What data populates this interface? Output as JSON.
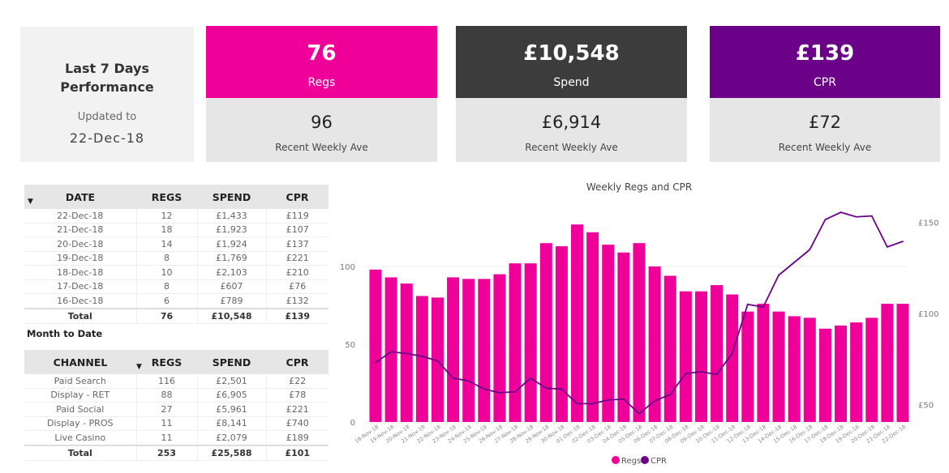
{
  "header": {
    "title": "Last 7 Days Performance",
    "updated_label": "Updated to",
    "updated_date": "22-Dec-18"
  },
  "kpis": [
    {
      "value": "76",
      "label": "Regs",
      "recent_value": "96",
      "recent_label": "Recent Weekly Ave",
      "color": "#ee0099"
    },
    {
      "value": "£10,548",
      "label": "Spend",
      "recent_value": "£6,914",
      "recent_label": "Recent Weekly Ave",
      "color": "#3c3c3c"
    },
    {
      "value": "£139",
      "label": "CPR",
      "recent_value": "£72",
      "recent_label": "Recent Weekly Ave",
      "color": "#6b0089"
    }
  ],
  "daily_table": {
    "columns": [
      "DATE",
      "REGS",
      "SPEND",
      "CPR"
    ],
    "rows": [
      [
        "22-Dec-18",
        "12",
        "£1,433",
        "£119"
      ],
      [
        "21-Dec-18",
        "18",
        "£1,923",
        "£107"
      ],
      [
        "20-Dec-18",
        "14",
        "£1,924",
        "£137"
      ],
      [
        "19-Dec-18",
        "8",
        "£1,769",
        "£221"
      ],
      [
        "18-Dec-18",
        "10",
        "£2,103",
        "£210"
      ],
      [
        "17-Dec-18",
        "8",
        "£607",
        "£76"
      ],
      [
        "16-Dec-18",
        "6",
        "£789",
        "£132"
      ]
    ],
    "total": [
      "Total",
      "76",
      "£10,548",
      "£139"
    ]
  },
  "month_to_date": {
    "title": "Month to Date",
    "columns": [
      "CHANNEL",
      "REGS",
      "SPEND",
      "CPR"
    ],
    "rows": [
      [
        "Paid Search",
        "116",
        "£2,501",
        "£22"
      ],
      [
        "Display - RET",
        "88",
        "£6,905",
        "£78"
      ],
      [
        "Paid Social",
        "27",
        "£5,961",
        "£221"
      ],
      [
        "Display - PROS",
        "11",
        "£8,141",
        "£740"
      ],
      [
        "Live Casino",
        "11",
        "£2,079",
        "£189"
      ]
    ],
    "total": [
      "Total",
      "253",
      "£25,588",
      "£101"
    ]
  },
  "chart_data": {
    "type": "bar+line",
    "title": "Weekly Regs and CPR",
    "categories": [
      "18-Nov-18",
      "19-Nov-18",
      "20-Nov-18",
      "21-Nov-18",
      "22-Nov-18",
      "23-Nov-18",
      "24-Nov-18",
      "25-Nov-18",
      "26-Nov-18",
      "27-Nov-18",
      "28-Nov-18",
      "29-Nov-18",
      "30-Nov-18",
      "01-Dec-18",
      "02-Dec-18",
      "03-Dec-18",
      "04-Dec-18",
      "05-Dec-18",
      "06-Dec-18",
      "07-Dec-18",
      "08-Dec-18",
      "09-Dec-18",
      "10-Dec-18",
      "11-Dec-18",
      "12-Dec-18",
      "13-Dec-18",
      "14-Dec-18",
      "15-Dec-18",
      "16-Dec-18",
      "17-Dec-18",
      "18-Dec-18",
      "19-Dec-18",
      "20-Dec-18",
      "21-Dec-18",
      "22-Dec-18"
    ],
    "series": [
      {
        "name": "Regs",
        "type": "bar",
        "axis": "left",
        "color": "#ee0099",
        "values": [
          98,
          93,
          89,
          81,
          80,
          93,
          92,
          92,
          95,
          102,
          102,
          115,
          113,
          127,
          122,
          114,
          109,
          115,
          100,
          94,
          84,
          84,
          88,
          82,
          71,
          76,
          71,
          68,
          67,
          60,
          62,
          64,
          67,
          76,
          76
        ]
      },
      {
        "name": "CPR",
        "type": "line",
        "axis": "right",
        "color": "#6b0089",
        "values": [
          73,
          79,
          78,
          76.5,
          74,
          64.5,
          63,
          58.5,
          56.5,
          57,
          64.5,
          59,
          58.5,
          50.5,
          50.5,
          52.5,
          53,
          45,
          52,
          55.5,
          67,
          68,
          66.5,
          78,
          105,
          103.5,
          121,
          128,
          135,
          151.5,
          155.5,
          153,
          153.5,
          136.5,
          139.5
        ]
      }
    ],
    "left_axis": {
      "ticks": [
        "0",
        "50",
        "100"
      ],
      "range": [
        0,
        135
      ]
    },
    "right_axis": {
      "ticks": [
        "£50",
        "£100",
        "£150"
      ]
    },
    "grid": true,
    "legend": "bottom-center"
  }
}
